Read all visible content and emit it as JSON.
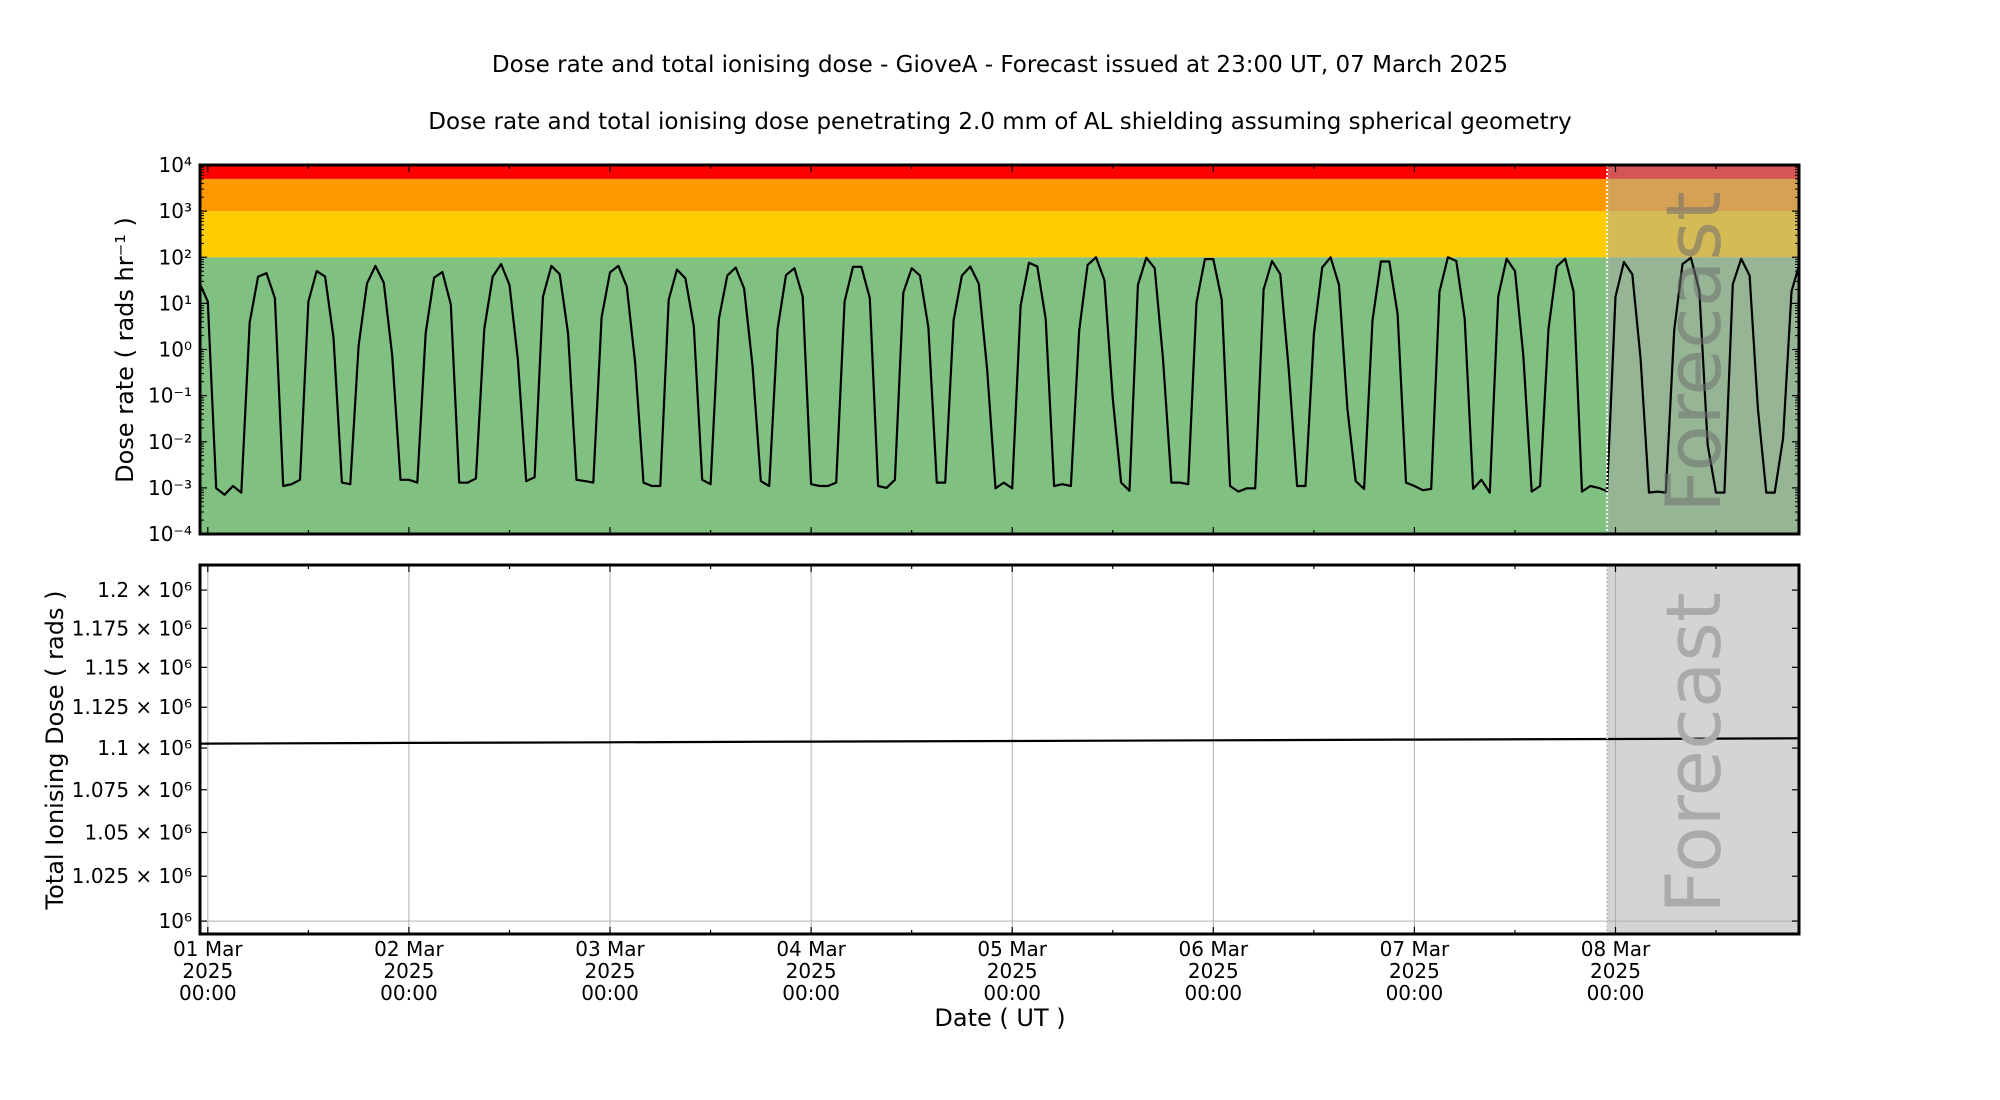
{
  "title": "Dose rate and total ionising dose - GioveA - Forecast issued at 23:00 UT, 07 March 2025",
  "subtitle": "Dose rate and total ionising dose penetrating 2.0 mm of AL shielding assuming spherical geometry",
  "forecast": {
    "label": "Forecast",
    "start": "2025-03-07T23:00",
    "overlay_color": "#a9a9a9"
  },
  "x_axis": {
    "label": "Date ( UT )",
    "xlim": [
      "2025-02-28T23:04",
      "2025-03-08T21:54"
    ],
    "ticks": [
      {
        "date": "2025-03-01T00:00",
        "lines": [
          "01 Mar",
          "2025",
          "00:00"
        ]
      },
      {
        "date": "2025-03-02T00:00",
        "lines": [
          "02 Mar",
          "2025",
          "00:00"
        ]
      },
      {
        "date": "2025-03-03T00:00",
        "lines": [
          "03 Mar",
          "2025",
          "00:00"
        ]
      },
      {
        "date": "2025-03-04T00:00",
        "lines": [
          "04 Mar",
          "2025",
          "00:00"
        ]
      },
      {
        "date": "2025-03-05T00:00",
        "lines": [
          "05 Mar",
          "2025",
          "00:00"
        ]
      },
      {
        "date": "2025-03-06T00:00",
        "lines": [
          "06 Mar",
          "2025",
          "00:00"
        ]
      },
      {
        "date": "2025-03-07T00:00",
        "lines": [
          "07 Mar",
          "2025",
          "00:00"
        ]
      },
      {
        "date": "2025-03-08T00:00",
        "lines": [
          "08 Mar",
          "2025",
          "00:00"
        ]
      }
    ]
  },
  "chart_data": [
    {
      "type": "line",
      "ylabel": "Dose rate ( rads hr⁻¹ )",
      "yscale": "log",
      "ylim": [
        0.0001,
        10000
      ],
      "grid": false,
      "yticks": [
        {
          "value": 0.0001,
          "label": "10⁻⁴"
        },
        {
          "value": 0.001,
          "label": "10⁻³"
        },
        {
          "value": 0.01,
          "label": "10⁻²"
        },
        {
          "value": 0.1,
          "label": "10⁻¹"
        },
        {
          "value": 1,
          "label": "10⁰"
        },
        {
          "value": 10,
          "label": "10¹"
        },
        {
          "value": 100,
          "label": "10²"
        },
        {
          "value": 1000,
          "label": "10³"
        },
        {
          "value": 10000,
          "label": "10⁴"
        }
      ],
      "bands": [
        {
          "from": 0.0001,
          "to": 100,
          "color": "#80c080"
        },
        {
          "from": 100,
          "to": 1000,
          "color": "#ffcc00"
        },
        {
          "from": 1000,
          "to": 5000,
          "color": "#ff9900"
        },
        {
          "from": 5000,
          "to": 10000,
          "color": "#ff0000"
        }
      ],
      "series": [
        {
          "color": "#000000",
          "time_start": "2025-02-28T23:00",
          "time_step_hours": 1,
          "values": [
            28,
            11,
            0.00098,
            0.00071,
            0.0011,
            0.00079,
            3.9,
            38,
            45,
            13,
            0.0011,
            0.0012,
            0.0015,
            11,
            50,
            38,
            1.8,
            0.0013,
            0.0012,
            1.2,
            27,
            65,
            28,
            0.74,
            0.0015,
            0.0015,
            0.0013,
            2.3,
            36,
            48,
            9.5,
            0.0013,
            0.0013,
            0.0016,
            2.8,
            38,
            71,
            25,
            0.63,
            0.0014,
            0.0017,
            14,
            65,
            43,
            2.2,
            0.0015,
            0.0014,
            0.0013,
            5.0,
            47,
            65,
            23,
            0.5,
            0.0013,
            0.0011,
            0.0011,
            12,
            54,
            35,
            3.2,
            0.0015,
            0.0012,
            4.6,
            40,
            60,
            21,
            0.45,
            0.0014,
            0.0011,
            2.8,
            41,
            58,
            14,
            0.0012,
            0.0011,
            0.0011,
            0.0013,
            11,
            62,
            62,
            13,
            0.0011,
            0.001,
            0.0015,
            17,
            58,
            40,
            3.0,
            0.0013,
            0.0013,
            4.3,
            40,
            63,
            27,
            0.38,
            0.00098,
            0.0013,
            0.00098,
            8.9,
            76,
            63,
            4.6,
            0.0011,
            0.0012,
            0.0011,
            2.6,
            68,
            100,
            32,
            0.085,
            0.0013,
            0.00087,
            25,
            98,
            58,
            0.63,
            0.0013,
            0.0013,
            0.0012,
            10.5,
            91,
            91,
            12,
            0.0011,
            0.00083,
            0.00098,
            0.00098,
            20,
            83,
            43,
            0.38,
            0.0011,
            0.0011,
            2.2,
            60,
            100,
            25,
            0.052,
            0.0014,
            0.00095,
            4.3,
            81,
            81,
            5.9,
            0.0013,
            0.0011,
            0.00089,
            0.00095,
            18,
            100,
            83,
            4.6,
            0.00095,
            0.0015,
            0.00079,
            14,
            93,
            50,
            0.74,
            0.00083,
            0.0011,
            2.8,
            63,
            93,
            18,
            0.00083,
            0.0011,
            0.001,
            0.00085,
            14,
            79,
            43,
            0.63,
            0.00079,
            0.00083,
            0.00079,
            2.6,
            71,
            98,
            19,
            0.0085,
            0.00079,
            0.00079,
            26,
            93,
            40,
            0.052,
            0.00079,
            0.00079,
            0.012,
            18,
            76
          ]
        }
      ]
    },
    {
      "type": "line",
      "ylabel": "Total Ionising Dose ( rads )",
      "xlabel": "Date ( UT )",
      "yscale": "log",
      "ylim": [
        992900,
        1216700
      ],
      "grid": true,
      "yticks": [
        {
          "value": 1000000,
          "label": "10⁶"
        },
        {
          "value": 1025000,
          "label": "1.025 × 10⁶"
        },
        {
          "value": 1050000,
          "label": "1.05 × 10⁶"
        },
        {
          "value": 1075000,
          "label": "1.075 × 10⁶"
        },
        {
          "value": 1100000,
          "label": "1.1 × 10⁶"
        },
        {
          "value": 1125000,
          "label": "1.125 × 10⁶"
        },
        {
          "value": 1150000,
          "label": "1.15 × 10⁶"
        },
        {
          "value": 1175000,
          "label": "1.175 × 10⁶"
        },
        {
          "value": 1200000,
          "label": "1.2 × 10⁶"
        }
      ],
      "series": [
        {
          "color": "#000000",
          "x": [
            "2025-02-28T23:00",
            "2025-03-01T00:00",
            "2025-03-02T00:00",
            "2025-03-03T00:00",
            "2025-03-04T00:00",
            "2025-03-05T00:00",
            "2025-03-06T00:00",
            "2025-03-07T00:00",
            "2025-03-08T00:00",
            "2025-03-08T22:00"
          ],
          "y": [
            1102700,
            1102700,
            1103100,
            1103500,
            1103900,
            1104300,
            1104700,
            1105100,
            1105500,
            1105900
          ]
        }
      ]
    }
  ]
}
